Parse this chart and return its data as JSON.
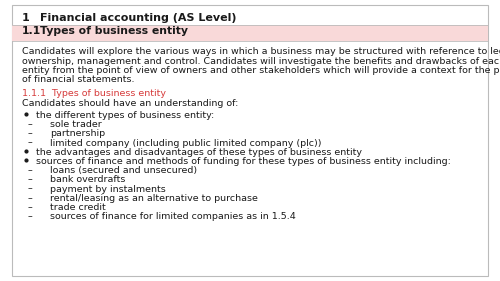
{
  "title_num": "1",
  "title_text": "Financial accounting (AS Level)",
  "section_header": "1.1   Types of business entity",
  "section_bg_color": "#f9d9d9",
  "bg_color": "#ffffff",
  "border_color": "#bbbbbb",
  "body_text_lines": [
    "Candidates will explore the various ways in which a business may be structured with reference to legal form,",
    "ownership, management and control. Candidates will investigate the benefits and drawbacks of each type of",
    "entity from the point of view of owners and other stakeholders which will provide a context for the preparation",
    "of financial statements."
  ],
  "subsection_title": "1.1.1  Types of business entity",
  "subsection_title_color": "#d63b3b",
  "sub_intro": "Candidates should have an understanding of:",
  "body_fontsize": 6.8,
  "title_fontsize": 8.0,
  "header_fontsize": 7.8,
  "bullets": [
    {
      "text": "the different types of business entity:",
      "level": 0
    },
    {
      "text": "sole trader",
      "level": 1
    },
    {
      "text": "partnership",
      "level": 1
    },
    {
      "text": "limited company (including public limited company (plc))",
      "level": 1
    },
    {
      "text": "the advantages and disadvantages of these types of business entity",
      "level": 0
    },
    {
      "text": "sources of finance and methods of funding for these types of business entity including:",
      "level": 0
    },
    {
      "text": "loans (secured and unsecured)",
      "level": 1
    },
    {
      "text": "bank overdrafts",
      "level": 1
    },
    {
      "text": "payment by instalments",
      "level": 1
    },
    {
      "text": "rental/leasing as an alternative to purchase",
      "level": 1
    },
    {
      "text": "trade credit",
      "level": 1
    },
    {
      "text": "sources of finance for limited companies as in 1.5.4",
      "level": 1
    }
  ]
}
